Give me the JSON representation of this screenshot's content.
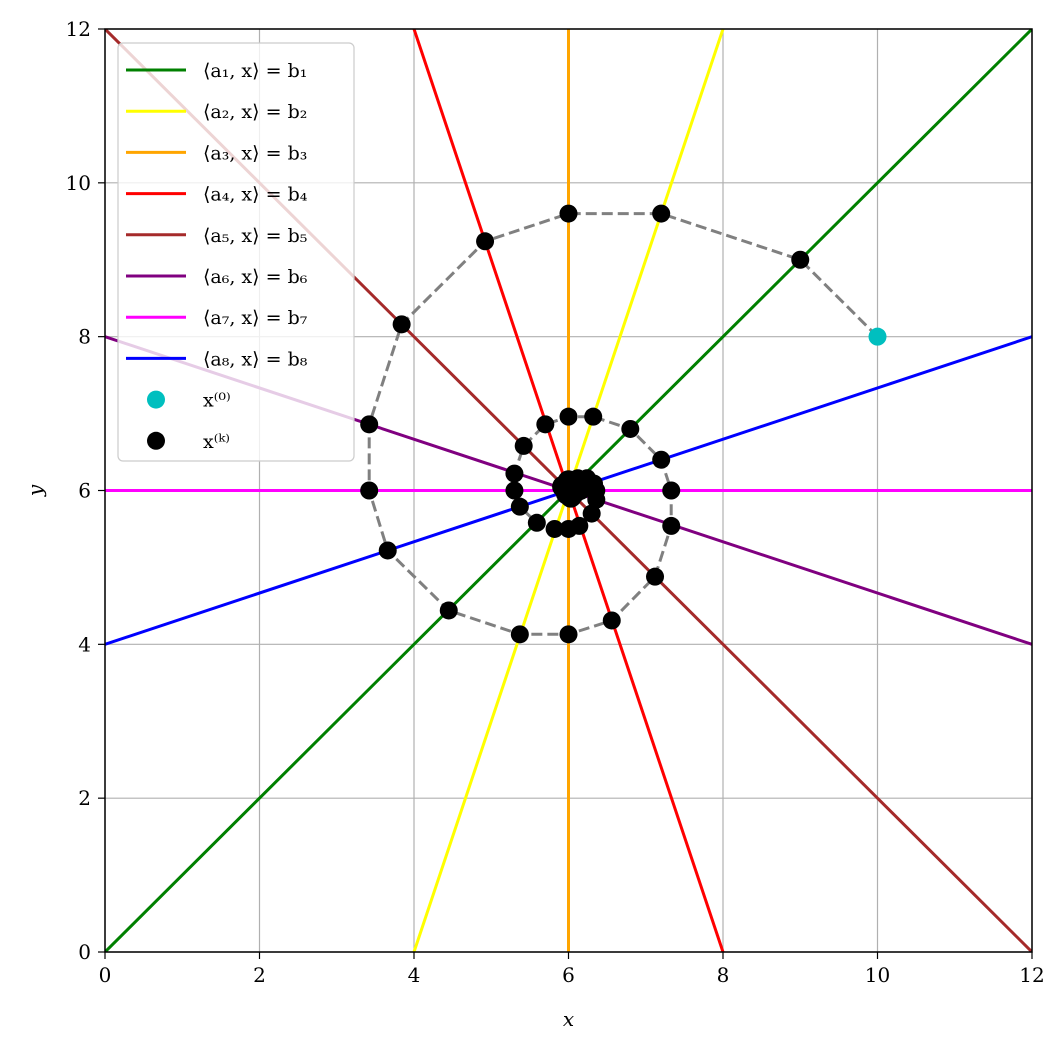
{
  "chart_data": {
    "type": "line",
    "xlabel": "x",
    "ylabel": "y",
    "xlim": [
      0,
      12
    ],
    "ylim": [
      0,
      12
    ],
    "xticks": [
      "0",
      "2",
      "4",
      "6",
      "8",
      "10",
      "12"
    ],
    "yticks": [
      "0",
      "2",
      "4",
      "6",
      "8",
      "10",
      "12"
    ],
    "grid": true,
    "legend_position": "top-left",
    "lines": [
      {
        "name": "⟨a₁, x⟩ = b₁",
        "color": "#008000",
        "p1": [
          0,
          0
        ],
        "p2": [
          12,
          12
        ]
      },
      {
        "name": "⟨a₂, x⟩ = b₂",
        "color": "#ffff00",
        "p1": [
          4,
          0
        ],
        "p2": [
          8,
          12
        ]
      },
      {
        "name": "⟨a₃, x⟩ = b₃",
        "color": "#ffa500",
        "p1": [
          6,
          0
        ],
        "p2": [
          6,
          12
        ]
      },
      {
        "name": "⟨a₄, x⟩ = b₄",
        "color": "#ff0000",
        "p1": [
          8,
          0
        ],
        "p2": [
          4,
          12
        ]
      },
      {
        "name": "⟨a₅, x⟩ = b₅",
        "color": "#a52a2a",
        "p1": [
          0,
          12
        ],
        "p2": [
          12,
          0
        ]
      },
      {
        "name": "⟨a₆, x⟩ = b₆",
        "color": "#800080",
        "p1": [
          0,
          8
        ],
        "p2": [
          12,
          4
        ]
      },
      {
        "name": "⟨a₇, x⟩ = b₇",
        "color": "#ff00ff",
        "p1": [
          0,
          6
        ],
        "p2": [
          12,
          6
        ]
      },
      {
        "name": "⟨a₈, x⟩ = b₈",
        "color": "#0000ff",
        "p1": [
          0,
          4
        ],
        "p2": [
          12,
          8
        ]
      }
    ],
    "initial_point": {
      "name": "x⁽⁰⁾",
      "color": "#00bfbf",
      "x": 10,
      "y": 8
    },
    "iterates": {
      "name": "x⁽ᵏ⁾",
      "color": "#000000",
      "path_color": "#808080",
      "points": [
        [
          10,
          8
        ],
        [
          9.0,
          9.0
        ],
        [
          7.2,
          9.6
        ],
        [
          6.0,
          9.6
        ],
        [
          4.92,
          9.24
        ],
        [
          3.84,
          8.16
        ],
        [
          3.42,
          6.86
        ],
        [
          3.42,
          6.0
        ],
        [
          3.66,
          5.22
        ],
        [
          4.45,
          4.44
        ],
        [
          5.37,
          4.13
        ],
        [
          6.0,
          4.13
        ],
        [
          6.56,
          4.31
        ],
        [
          7.12,
          4.88
        ],
        [
          7.33,
          5.54
        ],
        [
          7.33,
          6.0
        ],
        [
          7.2,
          6.4
        ],
        [
          6.8,
          6.8
        ],
        [
          6.32,
          6.96
        ],
        [
          6.0,
          6.96
        ],
        [
          5.7,
          6.86
        ],
        [
          5.42,
          6.58
        ],
        [
          5.3,
          6.22
        ],
        [
          5.3,
          6.0
        ],
        [
          5.37,
          5.79
        ],
        [
          5.59,
          5.58
        ],
        [
          5.82,
          5.5
        ],
        [
          6.0,
          5.5
        ],
        [
          6.14,
          5.54
        ],
        [
          6.3,
          5.7
        ],
        [
          6.36,
          5.88
        ],
        [
          6.36,
          6.0
        ],
        [
          6.33,
          6.09
        ],
        [
          6.24,
          6.16
        ],
        [
          6.12,
          6.16
        ],
        [
          6.04,
          6.13
        ],
        [
          5.97,
          6.06
        ],
        [
          5.96,
          6.02
        ],
        [
          6.0,
          6.0
        ]
      ]
    }
  }
}
